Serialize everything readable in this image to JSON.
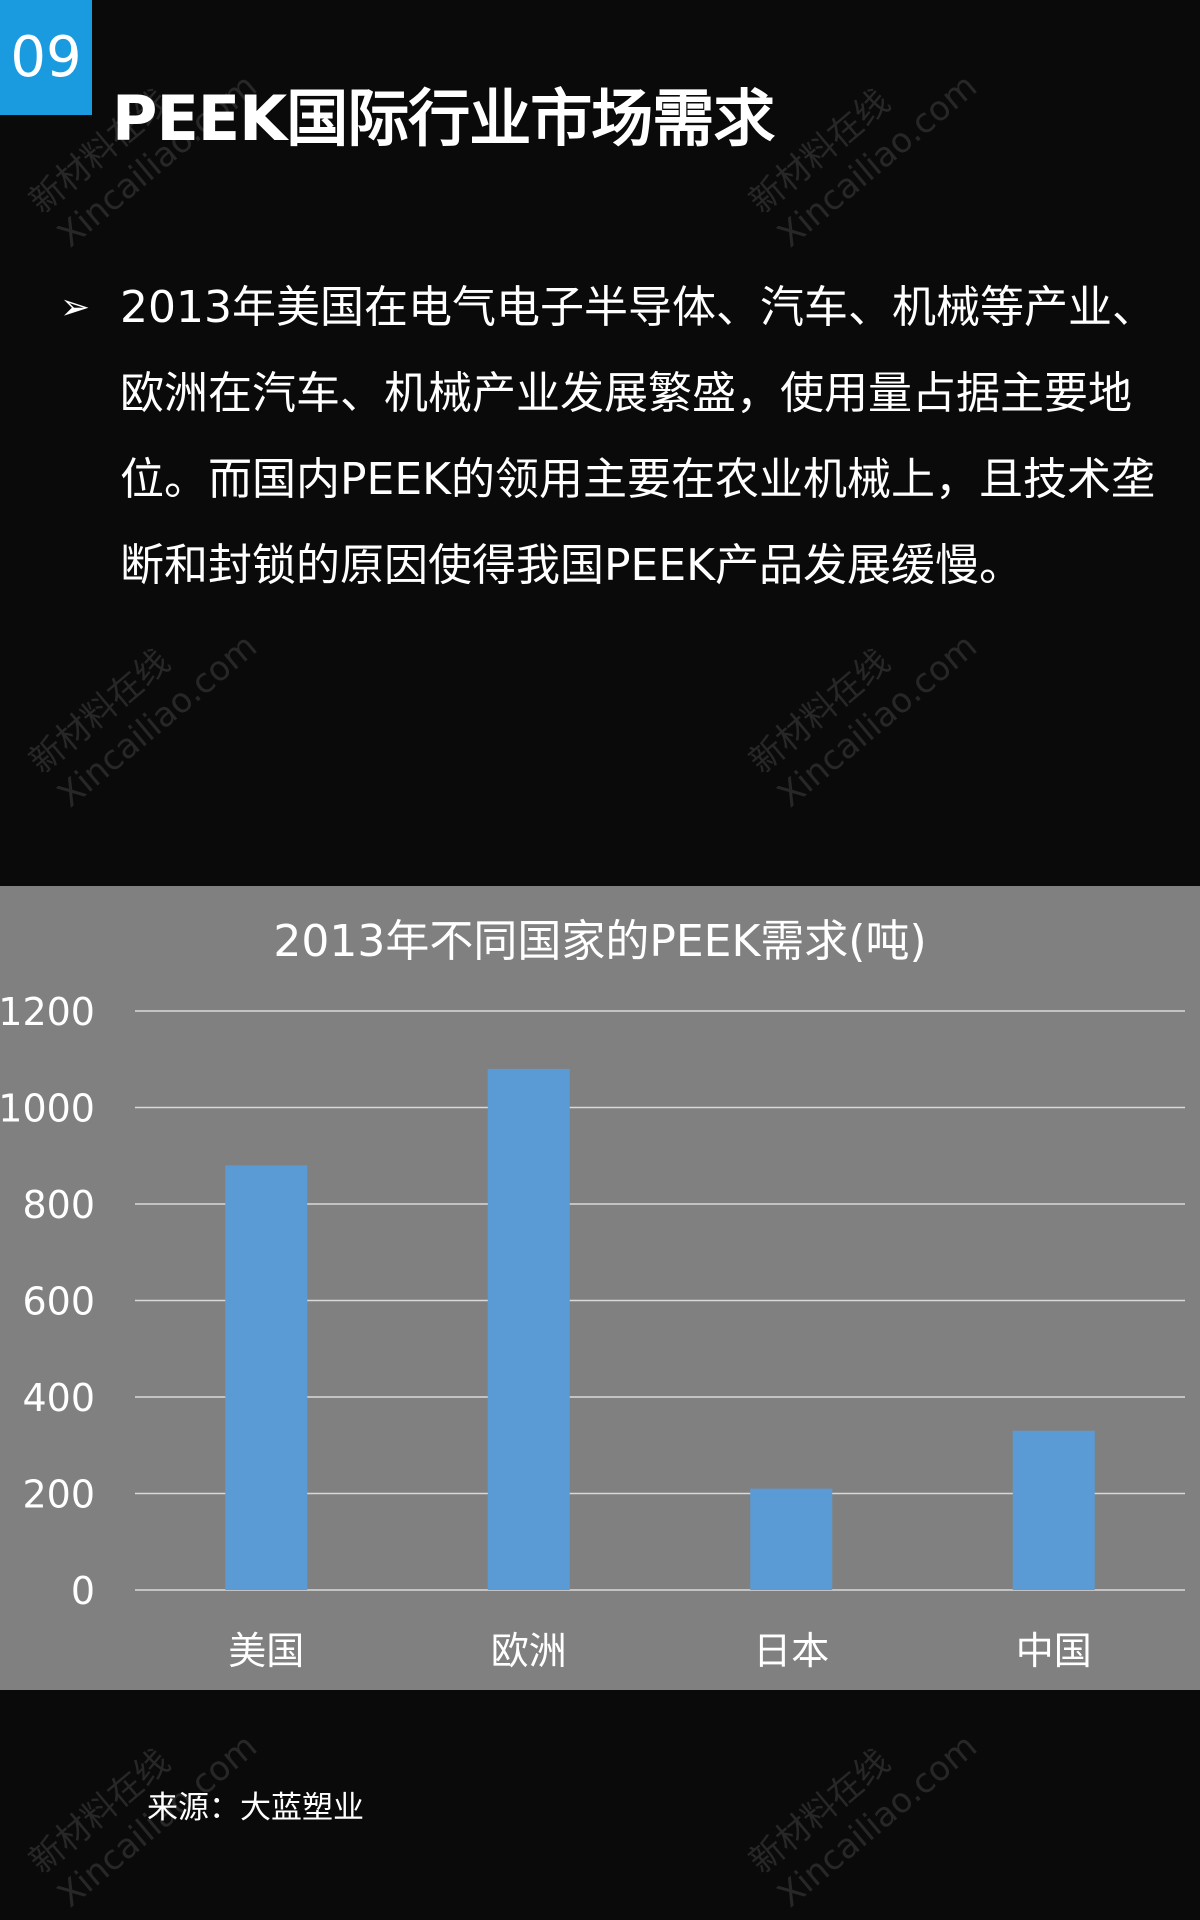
{
  "header": {
    "number": "09",
    "title": "PEEK国际行业市场需求",
    "accent_color": "#1a9be0"
  },
  "bullet": {
    "icon": "arrow-bullet-icon",
    "symbol": "➢",
    "text": "2013年美国在电气电子半导体、汽车、机械等产业、欧洲在汽车、机械产业发展繁盛，使用量占据主要地位。而国内PEEK的领用主要在农业机械上，且技术垄断和封锁的原因使得我国PEEK产品发展缓慢。"
  },
  "chart_data": {
    "type": "bar",
    "title": "2013年不同国家的PEEK需求(吨)",
    "categories": [
      "美国",
      "欧洲",
      "日本",
      "中国"
    ],
    "values": [
      880,
      1080,
      210,
      330
    ],
    "ylim": [
      0,
      1200
    ],
    "yticks": [
      "0",
      "200",
      "400",
      "600",
      "800",
      "1000",
      "1200"
    ],
    "grid": true,
    "bar_color": "#5b9bd5",
    "background": "#808080"
  },
  "source": "来源：大蓝塑业",
  "watermark": {
    "line1": "新材料在线",
    "line2": "Xincailiao.com"
  }
}
